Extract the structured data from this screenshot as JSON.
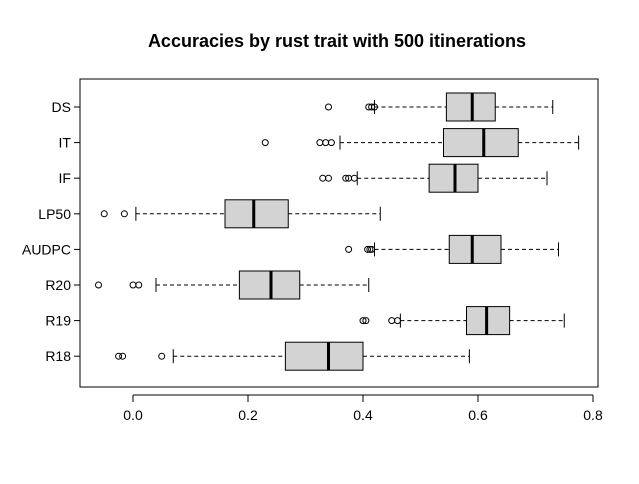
{
  "chart_data": {
    "type": "boxplot",
    "orientation": "horizontal",
    "title": "Accuracies by rust trait with 500 itinerations",
    "xlabel": "",
    "ylabel": "",
    "xlim": [
      -0.1,
      0.8
    ],
    "xticks": [
      0.0,
      0.2,
      0.4,
      0.6,
      0.8
    ],
    "xtick_labels": [
      "0.0",
      "0.2",
      "0.4",
      "0.6",
      "0.8"
    ],
    "box_color": "#d3d3d3",
    "categories": [
      "DS",
      "IT",
      "IF",
      "LP50",
      "AUDPC",
      "R20",
      "R19",
      "R18"
    ],
    "boxes": [
      {
        "name": "DS",
        "whisker_low": 0.42,
        "q1": 0.545,
        "median": 0.59,
        "q3": 0.63,
        "whisker_high": 0.73,
        "outliers": [
          0.34,
          0.41,
          0.415,
          0.42
        ]
      },
      {
        "name": "IT",
        "whisker_low": 0.36,
        "q1": 0.54,
        "median": 0.61,
        "q3": 0.67,
        "whisker_high": 0.775,
        "outliers": [
          0.23,
          0.325,
          0.335,
          0.345
        ]
      },
      {
        "name": "IF",
        "whisker_low": 0.39,
        "q1": 0.515,
        "median": 0.56,
        "q3": 0.6,
        "whisker_high": 0.72,
        "outliers": [
          0.33,
          0.34,
          0.37,
          0.375,
          0.385
        ]
      },
      {
        "name": "LP50",
        "whisker_low": 0.005,
        "q1": 0.16,
        "median": 0.21,
        "q3": 0.27,
        "whisker_high": 0.43,
        "outliers": [
          -0.05,
          -0.015
        ]
      },
      {
        "name": "AUDPC",
        "whisker_low": 0.42,
        "q1": 0.55,
        "median": 0.59,
        "q3": 0.64,
        "whisker_high": 0.74,
        "outliers": [
          0.375,
          0.408,
          0.412,
          0.415
        ]
      },
      {
        "name": "R20",
        "whisker_low": 0.04,
        "q1": 0.185,
        "median": 0.24,
        "q3": 0.29,
        "whisker_high": 0.41,
        "outliers": [
          -0.06,
          0.0,
          0.01
        ]
      },
      {
        "name": "R19",
        "whisker_low": 0.465,
        "q1": 0.58,
        "median": 0.615,
        "q3": 0.655,
        "whisker_high": 0.75,
        "outliers": [
          0.4,
          0.405,
          0.45,
          0.46
        ]
      },
      {
        "name": "R18",
        "whisker_low": 0.07,
        "q1": 0.265,
        "median": 0.34,
        "q3": 0.4,
        "whisker_high": 0.585,
        "outliers": [
          -0.025,
          -0.018,
          0.05
        ]
      }
    ]
  }
}
